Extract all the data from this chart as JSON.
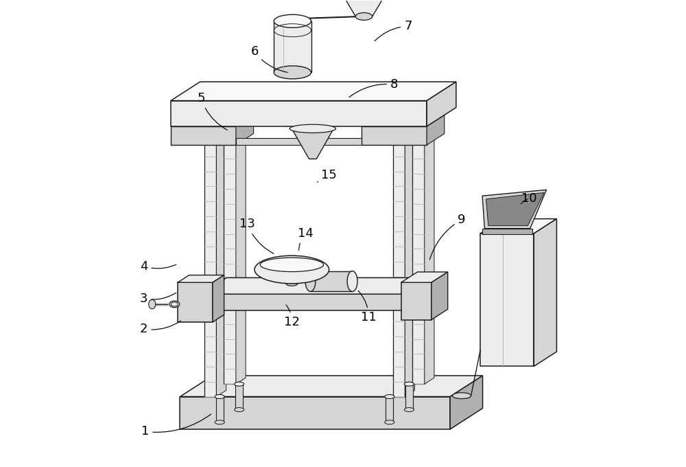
{
  "figure_width": 10.0,
  "figure_height": 6.8,
  "dpi": 100,
  "bg_color": "#FFFFFF",
  "line_color": "#1a1a1a",
  "cL": "#ececec",
  "cM": "#d5d5d5",
  "cD": "#b0b0b0",
  "cVD": "#888888",
  "cW": "#f8f8f8",
  "label_fontsize": 13,
  "label_targets": {
    "1": [
      0.075,
      0.075,
      0.22,
      0.115
    ],
    "2": [
      0.072,
      0.295,
      0.155,
      0.315
    ],
    "3": [
      0.072,
      0.36,
      0.145,
      0.375
    ],
    "4": [
      0.072,
      0.43,
      0.145,
      0.435
    ],
    "5": [
      0.195,
      0.79,
      0.255,
      0.72
    ],
    "6": [
      0.31,
      0.89,
      0.385,
      0.845
    ],
    "7": [
      0.64,
      0.945,
      0.565,
      0.91
    ],
    "8": [
      0.61,
      0.82,
      0.51,
      0.79
    ],
    "9": [
      0.755,
      0.53,
      0.685,
      0.44
    ],
    "10": [
      0.9,
      0.575,
      0.88,
      0.56
    ],
    "11": [
      0.555,
      0.32,
      0.53,
      0.38
    ],
    "12": [
      0.39,
      0.31,
      0.375,
      0.35
    ],
    "13": [
      0.295,
      0.52,
      0.355,
      0.455
    ],
    "14": [
      0.42,
      0.5,
      0.405,
      0.46
    ],
    "15": [
      0.47,
      0.625,
      0.445,
      0.61
    ]
  }
}
